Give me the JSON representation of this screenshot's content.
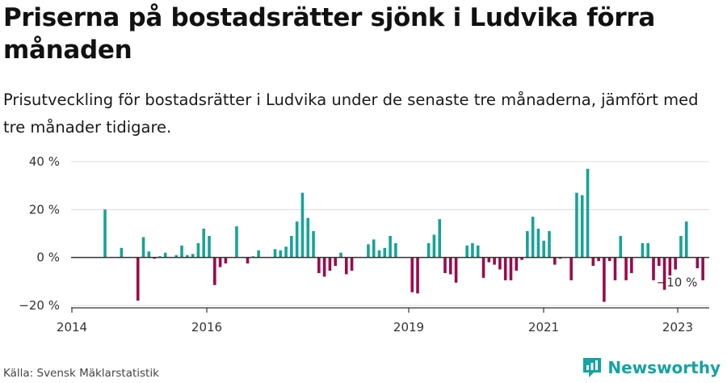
{
  "header": {
    "title": "Priserna på bostadsrätter sjönk i Ludvika förra månaden",
    "subtitle": "Prisutveckling för bostadsrätter i Ludvika under de senaste tre månaderna, jämfört med tre månader tidigare."
  },
  "footer": {
    "source": "Källa: Svensk Mäklarstatistik",
    "brand": "Newsworthy"
  },
  "colors": {
    "positive": "#17a398",
    "negative": "#9b0a4a",
    "brand": "#14a3a3"
  },
  "chart_data": {
    "type": "bar",
    "title": "",
    "xlabel": "",
    "ylabel": "",
    "ylim": [
      -20,
      40
    ],
    "y_ticks": [
      "40 %",
      "20 %",
      "0 %",
      "−20 %"
    ],
    "x_ticks": [
      "2014",
      "2016",
      "2019",
      "2021",
      "2023"
    ],
    "grid": true,
    "annotation": "−10 %",
    "values": [
      20,
      0,
      0,
      4,
      0,
      0,
      -18,
      8.5,
      2.5,
      -0.5,
      0.5,
      2,
      0,
      1,
      5,
      1,
      1.5,
      6,
      12,
      9,
      -11.5,
      -4,
      -2.5,
      0,
      13,
      0,
      -2.5,
      0.5,
      3,
      0,
      0,
      3.5,
      3,
      4.5,
      9,
      15,
      27,
      16.5,
      11,
      -6.5,
      -8,
      -5.5,
      -3.5,
      2,
      -7,
      -5.5,
      0,
      0,
      5.5,
      7.5,
      3,
      4,
      9,
      6,
      0,
      0,
      -14.5,
      -15,
      0,
      6,
      9.5,
      16,
      -6.5,
      -7,
      -10.5,
      0,
      5,
      6,
      5,
      -8.5,
      -2,
      -3,
      -5,
      -9.5,
      -9.5,
      -5.5,
      -1,
      11,
      17,
      12,
      7,
      11,
      -3,
      -0.5,
      0,
      -9.5,
      27,
      26,
      37,
      -3.5,
      -1.5,
      -18.5,
      -1.5,
      -9.5,
      9,
      -9.5,
      -6.5,
      0,
      6,
      6,
      -9.5,
      -3.5,
      -13.5,
      -7.5,
      -5,
      9,
      15,
      0,
      -4.5,
      -9.5
    ]
  }
}
